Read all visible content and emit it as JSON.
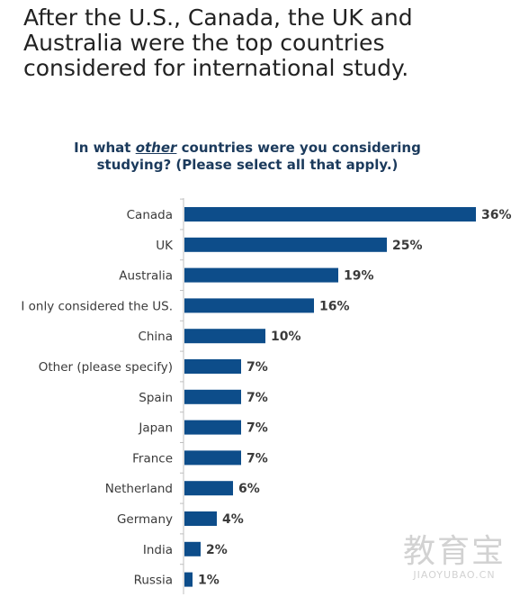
{
  "headline": "After the U.S., Canada, the UK and Australia were the top countries considered for international study.",
  "question": {
    "prefix": "In what ",
    "emphasis": "other",
    "suffix": " countries were you considering studying? (Please select all that apply.)"
  },
  "chart_data": {
    "type": "bar",
    "orientation": "horizontal",
    "categories": [
      "Canada",
      "UK",
      "Australia",
      "I only considered the US.",
      "China",
      "Other (please specify)",
      "Spain",
      "Japan",
      "France",
      "Netherland",
      "Germany",
      "India",
      "Russia"
    ],
    "values": [
      36,
      25,
      19,
      16,
      10,
      7,
      7,
      7,
      7,
      6,
      4,
      2,
      1
    ],
    "value_labels": [
      "36%",
      "25%",
      "19%",
      "16%",
      "10%",
      "7%",
      "7%",
      "7%",
      "7%",
      "6%",
      "4%",
      "2%",
      "1%"
    ],
    "unit": "%",
    "bar_color": "#0d4d8a",
    "grid": false,
    "legend": "none"
  },
  "watermark": {
    "cn": "教育宝",
    "en": "JIAOYUBAO.CN"
  }
}
